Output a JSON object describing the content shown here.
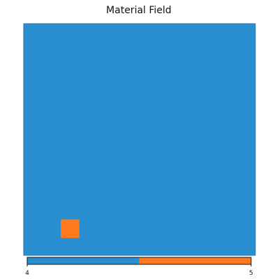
{
  "chart_data": {
    "type": "heatmap",
    "title": "Material Field",
    "xlabel": "",
    "ylabel": "",
    "grid": false,
    "xlim": [
      0,
      1
    ],
    "ylim": [
      0,
      1
    ],
    "background_value": 4,
    "regions": [
      {
        "x": [
          0.16,
          0.24
        ],
        "y": [
          0.075,
          0.155
        ],
        "value": 5
      }
    ],
    "colorbar": {
      "min": 4,
      "max": 5,
      "ticks": [
        "4",
        "5"
      ],
      "categories": [
        {
          "value": 4,
          "color": "#2a8fd1"
        },
        {
          "value": 5,
          "color": "#ff7a1e"
        }
      ]
    }
  }
}
